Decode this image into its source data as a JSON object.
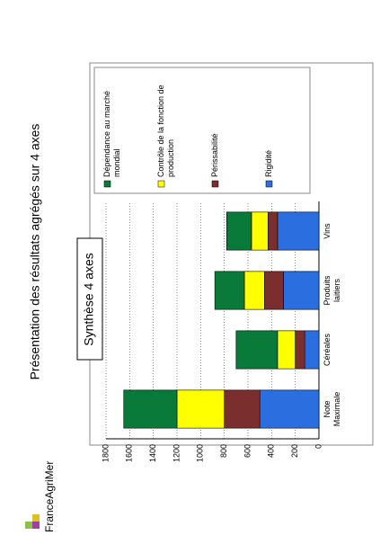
{
  "page_title": "Présentation des résultats agrégés sur 4 axes",
  "logo": "FranceAgriMer",
  "chart_data": {
    "type": "stacked_bar",
    "title": "Synthèse 4 axes",
    "categories": [
      "Note Maximale",
      "Céréales",
      "Produits laitiers",
      "Vins"
    ],
    "series": [
      {
        "name": "Dépendance au marché mondial",
        "color": "#0a7a3a",
        "values": [
          450,
          350,
          250,
          210
        ]
      },
      {
        "name": "Contrôle de la fonction de production",
        "color": "#ffff00",
        "values": [
          400,
          150,
          170,
          140
        ]
      },
      {
        "name": "Périssabilité",
        "color": "#7a2e2e",
        "values": [
          300,
          80,
          160,
          80
        ]
      },
      {
        "name": "Rigidité",
        "color": "#2a6ee0",
        "values": [
          500,
          120,
          300,
          350
        ]
      }
    ],
    "ylim": [
      0,
      1800
    ],
    "yticks": [
      0,
      200,
      400,
      600,
      800,
      1000,
      1200,
      1400,
      1600,
      1800
    ],
    "grid": true
  }
}
